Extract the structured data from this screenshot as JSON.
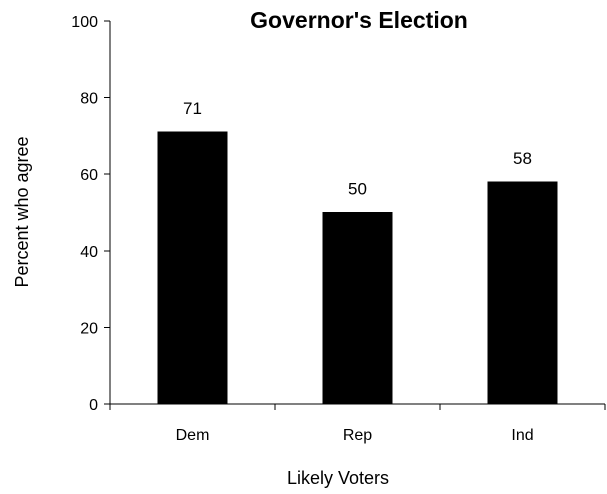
{
  "chart_data": {
    "type": "bar",
    "title": "Governor's Election",
    "xlabel": "Likely Voters",
    "ylabel": "Percent who agree",
    "categories": [
      "Dem",
      "Rep",
      "Ind"
    ],
    "values": [
      71,
      50,
      58
    ],
    "data_labels": [
      "71",
      "50",
      "58"
    ],
    "yticks": [
      0,
      20,
      40,
      60,
      80,
      100
    ],
    "ylim": [
      0,
      100
    ],
    "grid": false,
    "legend": "none",
    "colors": {
      "bar": "#000000",
      "axis": "#000000",
      "background": "#ffffff"
    }
  }
}
